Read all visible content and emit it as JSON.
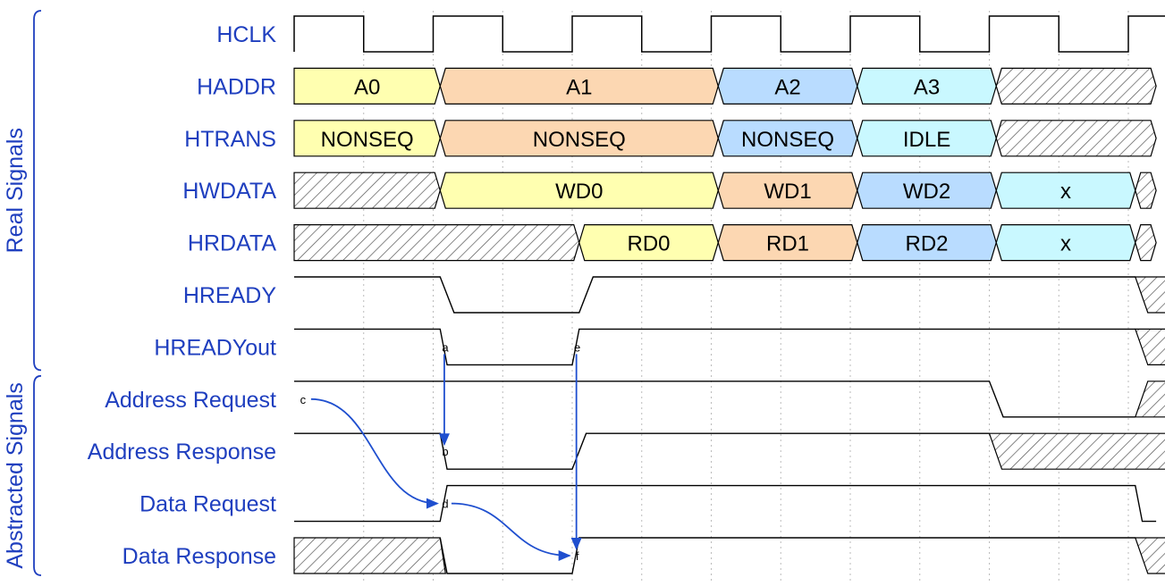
{
  "groups": [
    {
      "label": "Real Signals",
      "color": "#1f3fbf"
    },
    {
      "label": "Abstracted Signals",
      "color": "#1f3fbf"
    }
  ],
  "signals": [
    {
      "id": "hclk",
      "label": "HCLK",
      "type": "clock"
    },
    {
      "id": "haddr",
      "label": "HADDR",
      "type": "bus",
      "segments": [
        {
          "t0": 0,
          "t1": 1.05,
          "text": "A0",
          "color": "yellow"
        },
        {
          "t0": 1.05,
          "t1": 3.05,
          "text": "A1",
          "color": "orange"
        },
        {
          "t0": 3.05,
          "t1": 4.05,
          "text": "A2",
          "color": "blue"
        },
        {
          "t0": 4.05,
          "t1": 5.05,
          "text": "A3",
          "color": "cyan"
        },
        {
          "t0": 5.05,
          "t1": 6.2,
          "text": "",
          "color": "hatch"
        }
      ]
    },
    {
      "id": "htrans",
      "label": "HTRANS",
      "type": "bus",
      "segments": [
        {
          "t0": 0,
          "t1": 1.05,
          "text": "NONSEQ",
          "color": "yellow"
        },
        {
          "t0": 1.05,
          "t1": 3.05,
          "text": "NONSEQ",
          "color": "orange"
        },
        {
          "t0": 3.05,
          "t1": 4.05,
          "text": "NONSEQ",
          "color": "blue"
        },
        {
          "t0": 4.05,
          "t1": 5.05,
          "text": "IDLE",
          "color": "cyan"
        },
        {
          "t0": 5.05,
          "t1": 6.2,
          "text": "",
          "color": "hatch"
        }
      ]
    },
    {
      "id": "hwdata",
      "label": "HWDATA",
      "type": "bus",
      "segments": [
        {
          "t0": 0,
          "t1": 1.05,
          "text": "",
          "color": "hatch"
        },
        {
          "t0": 1.05,
          "t1": 3.05,
          "text": "WD0",
          "color": "yellow"
        },
        {
          "t0": 3.05,
          "t1": 4.05,
          "text": "WD1",
          "color": "orange"
        },
        {
          "t0": 4.05,
          "t1": 5.05,
          "text": "WD2",
          "color": "blue"
        },
        {
          "t0": 5.05,
          "t1": 6.05,
          "text": "x",
          "color": "cyan"
        },
        {
          "t0": 6.05,
          "t1": 6.2,
          "text": "",
          "color": "hatch"
        }
      ]
    },
    {
      "id": "hrdata",
      "label": "HRDATA",
      "type": "bus",
      "segments": [
        {
          "t0": 0,
          "t1": 2.05,
          "text": "",
          "color": "hatch"
        },
        {
          "t0": 2.05,
          "t1": 3.05,
          "text": "RD0",
          "color": "yellow"
        },
        {
          "t0": 3.05,
          "t1": 4.05,
          "text": "RD1",
          "color": "orange"
        },
        {
          "t0": 4.05,
          "t1": 5.05,
          "text": "RD2",
          "color": "blue"
        },
        {
          "t0": 5.05,
          "t1": 6.05,
          "text": "x",
          "color": "cyan"
        },
        {
          "t0": 6.05,
          "t1": 6.2,
          "text": "",
          "color": "hatch"
        }
      ]
    },
    {
      "id": "hready",
      "label": "HREADY",
      "type": "logic",
      "points": [
        [
          0,
          1
        ],
        [
          1.05,
          1
        ],
        [
          1.15,
          0
        ],
        [
          2.05,
          0
        ],
        [
          2.15,
          1
        ],
        [
          6.05,
          1
        ]
      ],
      "tail": "hatch"
    },
    {
      "id": "hreadyout",
      "label": "HREADYout",
      "type": "logic",
      "points": [
        [
          0,
          1
        ],
        [
          1.05,
          1
        ],
        [
          1.1,
          0
        ],
        [
          2.0,
          0
        ],
        [
          2.05,
          1
        ],
        [
          6.05,
          1
        ]
      ],
      "tail": "hatch"
    },
    {
      "id": "addr-req",
      "label": "Address Request",
      "type": "logic",
      "points": [
        [
          0,
          1
        ],
        [
          5.0,
          1
        ],
        [
          5.1,
          0
        ],
        [
          6.05,
          0
        ]
      ],
      "tail": "hatch"
    },
    {
      "id": "addr-resp",
      "label": "Address Response",
      "type": "logic",
      "points": [
        [
          0,
          1
        ],
        [
          1.05,
          1
        ],
        [
          1.1,
          0
        ],
        [
          2.0,
          0
        ],
        [
          2.1,
          1
        ],
        [
          5.0,
          1
        ]
      ],
      "tail": "hatchlong"
    },
    {
      "id": "data-req",
      "label": "Data Request",
      "type": "logic",
      "points": [
        [
          0,
          0
        ],
        [
          1.05,
          0
        ],
        [
          1.1,
          1
        ],
        [
          6.05,
          1
        ],
        [
          6.1,
          0
        ],
        [
          6.2,
          0
        ]
      ]
    },
    {
      "id": "data-resp",
      "label": "Data Response",
      "type": "logic",
      "points": [
        [
          1.05,
          1
        ],
        [
          1.1,
          0
        ],
        [
          2.0,
          0
        ],
        [
          2.05,
          1
        ],
        [
          6.05,
          1
        ]
      ],
      "head": "hatch",
      "tail": "hatch"
    }
  ],
  "markers": [
    {
      "label": "a",
      "t": 1.08,
      "row": 6
    },
    {
      "label": "b",
      "t": 1.08,
      "row": 8
    },
    {
      "label": "c",
      "t": 0.07,
      "row": 7
    },
    {
      "label": "d",
      "t": 1.08,
      "row": 9
    },
    {
      "label": "e",
      "t": 2.03,
      "row": 6
    },
    {
      "label": "f",
      "t": 2.03,
      "row": 10
    }
  ],
  "arrows": [
    {
      "from": "a",
      "to": "b",
      "style": "straight"
    },
    {
      "from": "c",
      "to": "d",
      "style": "curve"
    },
    {
      "from": "d",
      "to": "f",
      "style": "curve"
    },
    {
      "from": "e",
      "to": "f",
      "style": "straight"
    }
  ],
  "colors": {
    "yellow": "#ffffb0",
    "orange": "#fcd7b2",
    "blue": "#b9dcff",
    "cyan": "#c9f8ff",
    "line": "#000000",
    "arrow": "#1f4fcf",
    "label": "#1f3fbf",
    "grid": "#bbbbbb"
  }
}
